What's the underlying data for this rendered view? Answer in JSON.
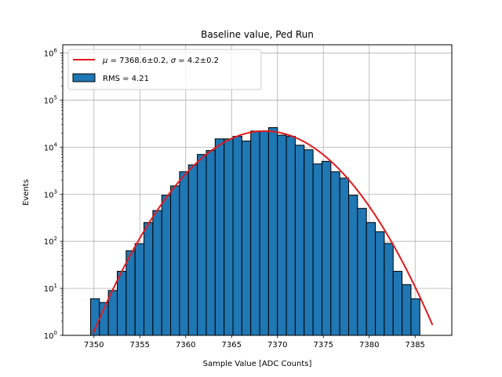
{
  "chart_data": {
    "type": "bar",
    "title": "Baseline value, Ped Run",
    "xlabel": "Sample Value [ADC Counts]",
    "ylabel": "Events",
    "xlim": [
      7346.6,
      7389.0
    ],
    "ylim": [
      1,
      1500000
    ],
    "yscale": "log",
    "grid": true,
    "legend_position": "top-left",
    "x_ticks": [
      7350,
      7355,
      7360,
      7365,
      7370,
      7375,
      7380,
      7385
    ],
    "y_ticks": [
      {
        "value": 1,
        "base": "10",
        "exp": "0"
      },
      {
        "value": 10,
        "base": "10",
        "exp": "1"
      },
      {
        "value": 100,
        "base": "10",
        "exp": "2"
      },
      {
        "value": 1000,
        "base": "10",
        "exp": "3"
      },
      {
        "value": 10000,
        "base": "10",
        "exp": "4"
      },
      {
        "value": 100000,
        "base": "10",
        "exp": "5"
      },
      {
        "value": 1000000,
        "base": "10",
        "exp": "6"
      }
    ],
    "histogram": {
      "series_name": "RMS = 4.21",
      "color": "#1f77b4",
      "edge_color": "#000000",
      "bins": [
        {
          "x0": 7348.66,
          "x1": 7349.63,
          "count": 1
        },
        {
          "x0": 7349.63,
          "x1": 7350.6,
          "count": 6
        },
        {
          "x0": 7350.6,
          "x1": 7351.57,
          "count": 5
        },
        {
          "x0": 7351.57,
          "x1": 7352.54,
          "count": 9
        },
        {
          "x0": 7352.54,
          "x1": 7353.51,
          "count": 23
        },
        {
          "x0": 7353.51,
          "x1": 7354.48,
          "count": 63
        },
        {
          "x0": 7354.48,
          "x1": 7355.45,
          "count": 89
        },
        {
          "x0": 7355.45,
          "x1": 7356.42,
          "count": 250
        },
        {
          "x0": 7356.42,
          "x1": 7357.39,
          "count": 450
        },
        {
          "x0": 7357.39,
          "x1": 7358.36,
          "count": 950
        },
        {
          "x0": 7358.36,
          "x1": 7359.33,
          "count": 1500
        },
        {
          "x0": 7359.33,
          "x1": 7360.3,
          "count": 3000
        },
        {
          "x0": 7360.3,
          "x1": 7361.27,
          "count": 4200
        },
        {
          "x0": 7361.27,
          "x1": 7362.24,
          "count": 7000
        },
        {
          "x0": 7362.24,
          "x1": 7363.21,
          "count": 8500
        },
        {
          "x0": 7363.21,
          "x1": 7364.18,
          "count": 15000
        },
        {
          "x0": 7364.18,
          "x1": 7365.15,
          "count": 15000
        },
        {
          "x0": 7365.15,
          "x1": 7366.12,
          "count": 17000
        },
        {
          "x0": 7366.12,
          "x1": 7367.09,
          "count": 13500
        },
        {
          "x0": 7367.09,
          "x1": 7368.06,
          "count": 22000
        },
        {
          "x0": 7368.06,
          "x1": 7369.03,
          "count": 22000
        },
        {
          "x0": 7369.03,
          "x1": 7370.0,
          "count": 26000
        },
        {
          "x0": 7370.0,
          "x1": 7370.97,
          "count": 18000
        },
        {
          "x0": 7370.97,
          "x1": 7371.94,
          "count": 17000
        },
        {
          "x0": 7371.94,
          "x1": 7372.91,
          "count": 11000
        },
        {
          "x0": 7372.91,
          "x1": 7373.88,
          "count": 8800
        },
        {
          "x0": 7373.88,
          "x1": 7374.85,
          "count": 4400
        },
        {
          "x0": 7374.85,
          "x1": 7375.82,
          "count": 5000
        },
        {
          "x0": 7375.82,
          "x1": 7376.79,
          "count": 3000
        },
        {
          "x0": 7376.79,
          "x1": 7377.76,
          "count": 2200
        },
        {
          "x0": 7377.76,
          "x1": 7378.73,
          "count": 950
        },
        {
          "x0": 7378.73,
          "x1": 7379.7,
          "count": 500
        },
        {
          "x0": 7379.7,
          "x1": 7380.67,
          "count": 250
        },
        {
          "x0": 7380.67,
          "x1": 7381.64,
          "count": 160
        },
        {
          "x0": 7381.64,
          "x1": 7382.61,
          "count": 90
        },
        {
          "x0": 7382.61,
          "x1": 7383.58,
          "count": 23
        },
        {
          "x0": 7383.58,
          "x1": 7384.55,
          "count": 12
        },
        {
          "x0": 7384.55,
          "x1": 7385.52,
          "count": 6
        }
      ]
    },
    "fit": {
      "label_mu": "7368.6±0.2",
      "label_sigma": "4.2±0.2",
      "color": "#e31a1c",
      "mu": 7368.6,
      "sigma": 4.2,
      "amplitude": 22000,
      "x_range": [
        7349.9,
        7386.9
      ]
    }
  }
}
